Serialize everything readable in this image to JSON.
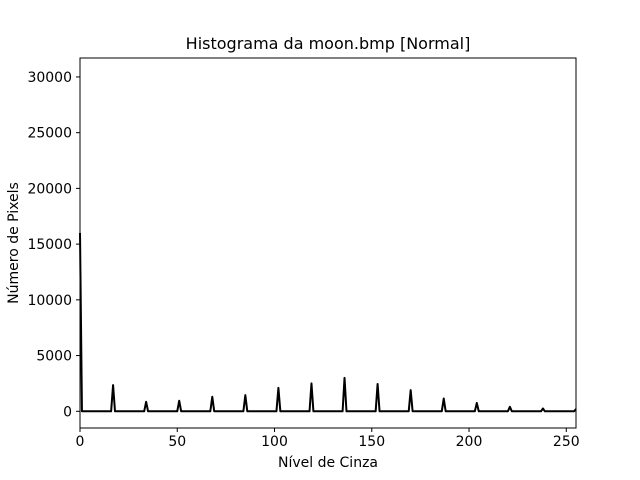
{
  "chart_data": {
    "type": "line",
    "title": "Histograma da moon.bmp [Normal]",
    "xlabel": "Nível de Cinza",
    "ylabel": "Número de Pixels",
    "xlim": [
      0,
      255
    ],
    "ylim": [
      -1500,
      31700
    ],
    "xticks": [
      0,
      50,
      100,
      150,
      200,
      250
    ],
    "yticks": [
      0,
      5000,
      10000,
      15000,
      20000,
      25000,
      30000
    ],
    "grid": false,
    "legend": "none",
    "line_color": "#000000",
    "series": [
      {
        "points": [
          [
            0,
            16000
          ],
          [
            1,
            0
          ],
          [
            16,
            0
          ],
          [
            17,
            2350
          ],
          [
            18,
            0
          ],
          [
            33,
            0
          ],
          [
            34,
            850
          ],
          [
            35,
            0
          ],
          [
            50,
            0
          ],
          [
            51,
            950
          ],
          [
            52,
            0
          ],
          [
            67,
            0
          ],
          [
            68,
            1300
          ],
          [
            69,
            0
          ],
          [
            84,
            0
          ],
          [
            85,
            1450
          ],
          [
            86,
            0
          ],
          [
            101,
            0
          ],
          [
            102,
            2100
          ],
          [
            103,
            0
          ],
          [
            118,
            0
          ],
          [
            119,
            2500
          ],
          [
            120,
            0
          ],
          [
            135,
            0
          ],
          [
            136,
            3000
          ],
          [
            137,
            0
          ],
          [
            152,
            0
          ],
          [
            153,
            2450
          ],
          [
            154,
            0
          ],
          [
            169,
            0
          ],
          [
            170,
            1900
          ],
          [
            171,
            0
          ],
          [
            186,
            0
          ],
          [
            187,
            1150
          ],
          [
            188,
            0
          ],
          [
            203,
            0
          ],
          [
            204,
            750
          ],
          [
            205,
            0
          ],
          [
            220,
            0
          ],
          [
            221,
            400
          ],
          [
            222,
            0
          ],
          [
            237,
            0
          ],
          [
            238,
            250
          ],
          [
            239,
            0
          ],
          [
            254,
            0
          ],
          [
            255,
            200
          ]
        ]
      }
    ]
  }
}
